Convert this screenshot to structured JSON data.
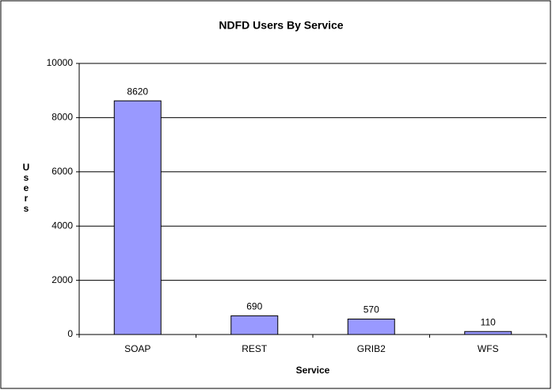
{
  "chart_data": {
    "type": "bar",
    "title": "NDFD Users By Service",
    "x_label": "Service",
    "y_label": "Users",
    "categories": [
      "SOAP",
      "REST",
      "GRIB2",
      "WFS"
    ],
    "values": [
      8620,
      690,
      570,
      110
    ],
    "color": "#9999ff",
    "ylim": [
      0,
      10000
    ],
    "yticks": [
      0,
      2000,
      4000,
      6000,
      8000,
      10000
    ],
    "grid": true
  }
}
